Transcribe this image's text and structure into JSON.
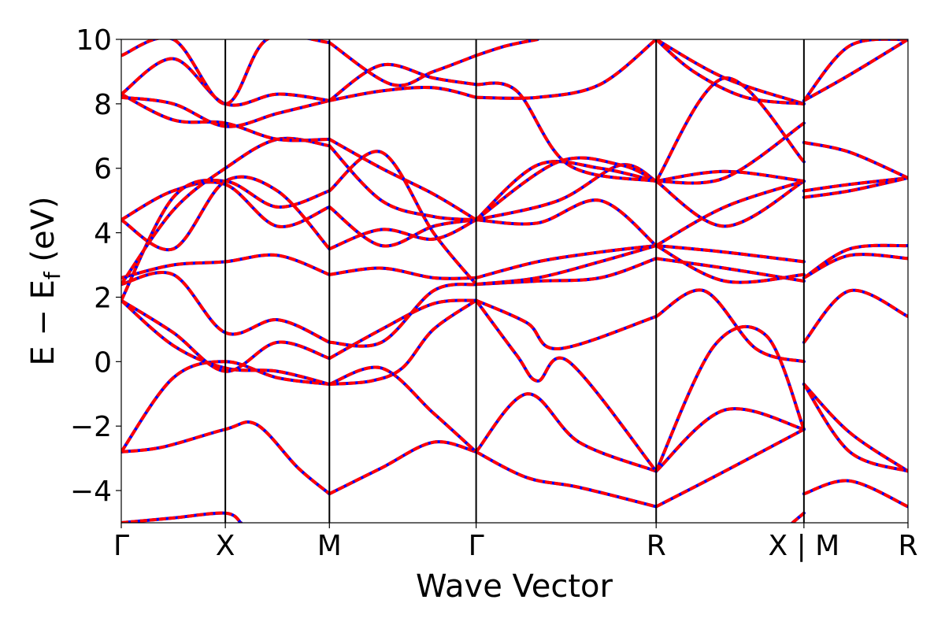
{
  "chart_data": {
    "type": "line",
    "title": "",
    "xlabel": "Wave Vector",
    "ylabel_parts": {
      "main": "E − E",
      "subscript": "f",
      "unit": " (eV)"
    },
    "ylim": [
      -5,
      10
    ],
    "y_ticks": [
      -4,
      -2,
      0,
      2,
      4,
      6,
      8,
      10
    ],
    "y_tick_labels": [
      "−4",
      "−2",
      "0",
      "2",
      "4",
      "6",
      "8",
      "10"
    ],
    "xlim": [
      0,
      7.56
    ],
    "high_symmetry_points": [
      {
        "label": "Γ",
        "x": 0.0
      },
      {
        "label": "X",
        "x": 1.0
      },
      {
        "label": "M",
        "x": 2.0
      },
      {
        "label": "Γ",
        "x": 3.41
      },
      {
        "label": "R",
        "x": 5.14
      },
      {
        "label": "X | M",
        "x": 6.56
      },
      {
        "label": "R",
        "x": 7.56
      }
    ],
    "grid": false,
    "legend": "none",
    "line_colors": {
      "band": "#ff0000",
      "overlay": "#0000ff",
      "vertical": "#000000"
    },
    "series": [
      {
        "x": [
          0,
          0.4,
          1.0,
          1.3,
          1.7,
          2.0
        ],
        "y": [
          -2.8,
          -2.65,
          -2.1,
          -1.95,
          -3.3,
          -4.1
        ]
      },
      {
        "x": [
          2.0,
          2.5,
          3.0,
          3.41
        ],
        "y": [
          -4.1,
          -3.3,
          -2.5,
          -2.8
        ]
      },
      {
        "x": [
          3.41,
          3.9,
          4.4,
          5.14
        ],
        "y": [
          -2.8,
          -3.6,
          -3.9,
          -4.5
        ]
      },
      {
        "x": [
          5.14,
          5.8,
          6.56
        ],
        "y": [
          -4.5,
          -3.4,
          -2.1
        ]
      },
      {
        "x": [
          6.56,
          7.0,
          7.56
        ],
        "y": [
          -4.1,
          -3.7,
          -4.5
        ]
      },
      {
        "x": [
          0,
          0.5,
          1.0,
          1.5,
          2.0
        ],
        "y": [
          -2.8,
          -0.5,
          0.0,
          -0.5,
          -0.7
        ]
      },
      {
        "x": [
          2.0,
          2.5,
          3.0,
          3.41
        ],
        "y": [
          -0.7,
          -0.2,
          -1.6,
          -2.8
        ]
      },
      {
        "x": [
          3.41,
          3.9,
          4.4,
          5.14
        ],
        "y": [
          -2.8,
          -1.0,
          -2.5,
          -3.4
        ]
      },
      {
        "x": [
          5.14,
          5.8,
          6.56
        ],
        "y": [
          -3.4,
          -1.5,
          -2.1
        ]
      },
      {
        "x": [
          6.56,
          7.0,
          7.56
        ],
        "y": [
          -0.7,
          -2.2,
          -3.4
        ]
      },
      {
        "x": [
          0,
          0.5,
          1.0,
          1.5,
          2.0
        ],
        "y": [
          1.9,
          0.5,
          -0.2,
          -0.3,
          -0.7
        ]
      },
      {
        "x": [
          2.0,
          2.4,
          2.7,
          3.0,
          3.41
        ],
        "y": [
          -0.7,
          -0.6,
          -0.2,
          1.0,
          1.9
        ]
      },
      {
        "x": [
          3.41,
          3.8,
          4.0,
          4.3,
          5.14
        ],
        "y": [
          1.9,
          0.2,
          -0.6,
          0.0,
          -3.4
        ]
      },
      {
        "x": [
          5.14,
          5.7,
          6.2,
          6.56
        ],
        "y": [
          -3.4,
          0.5,
          0.8,
          -2.1
        ]
      },
      {
        "x": [
          6.56,
          7.0,
          7.56
        ],
        "y": [
          -0.7,
          -2.8,
          -3.4
        ]
      },
      {
        "x": [
          0,
          0.5,
          1.0,
          1.5,
          2.0
        ],
        "y": [
          1.9,
          0.9,
          -0.3,
          0.6,
          0.1
        ]
      },
      {
        "x": [
          2.0,
          2.5,
          3.0,
          3.41
        ],
        "y": [
          0.1,
          1.0,
          1.8,
          1.9
        ]
      },
      {
        "x": [
          3.41,
          3.9,
          4.2,
          5.14
        ],
        "y": [
          1.9,
          1.2,
          0.4,
          1.4
        ]
      },
      {
        "x": [
          5.14,
          5.6,
          6.1,
          6.56
        ],
        "y": [
          1.4,
          2.2,
          0.4,
          0.0
        ]
      },
      {
        "x": [
          6.56,
          7.0,
          7.56
        ],
        "y": [
          0.6,
          2.2,
          1.4
        ]
      },
      {
        "x": [
          0,
          0.5,
          1.0,
          1.5,
          2.0
        ],
        "y": [
          2.4,
          2.7,
          0.9,
          1.3,
          0.6
        ]
      },
      {
        "x": [
          2.0,
          2.5,
          3.0,
          3.41
        ],
        "y": [
          0.6,
          0.6,
          2.2,
          2.4
        ]
      },
      {
        "x": [
          3.41,
          4.0,
          4.6,
          5.14
        ],
        "y": [
          2.4,
          2.5,
          2.6,
          3.2
        ]
      },
      {
        "x": [
          5.14,
          5.8,
          6.56
        ],
        "y": [
          3.2,
          2.9,
          2.5
        ]
      },
      {
        "x": [
          6.56,
          7.0,
          7.56
        ],
        "y": [
          2.6,
          3.3,
          3.2
        ]
      },
      {
        "x": [
          0,
          0.5,
          1.0,
          1.5,
          2.0
        ],
        "y": [
          2.6,
          3.0,
          3.1,
          3.3,
          2.7
        ]
      },
      {
        "x": [
          2.0,
          2.5,
          3.0,
          3.41
        ],
        "y": [
          2.7,
          2.9,
          2.6,
          2.6
        ]
      },
      {
        "x": [
          3.41,
          4.0,
          4.6,
          5.14
        ],
        "y": [
          2.6,
          3.1,
          3.4,
          3.6
        ]
      },
      {
        "x": [
          5.14,
          5.8,
          6.56
        ],
        "y": [
          3.6,
          3.4,
          3.1
        ]
      },
      {
        "x": [
          6.56,
          7.0,
          7.56
        ],
        "y": [
          2.6,
          3.5,
          3.6
        ]
      },
      {
        "x": [
          0,
          0.5,
          1.0,
          1.5,
          2.0
        ],
        "y": [
          4.4,
          3.5,
          5.6,
          5.3,
          3.5
        ]
      },
      {
        "x": [
          2.0,
          2.5,
          3.0,
          3.41
        ],
        "y": [
          3.5,
          4.1,
          3.8,
          4.4
        ]
      },
      {
        "x": [
          3.41,
          4.0,
          4.6,
          5.14
        ],
        "y": [
          4.4,
          4.3,
          5.0,
          3.6
        ]
      },
      {
        "x": [
          5.14,
          5.8,
          6.56
        ],
        "y": [
          3.6,
          2.5,
          2.7
        ]
      },
      {
        "x": [
          0,
          0.5,
          1.0,
          1.5,
          2.0
        ],
        "y": [
          4.4,
          5.3,
          5.5,
          4.2,
          4.8
        ]
      },
      {
        "x": [
          2.0,
          2.5,
          3.0,
          3.41
        ],
        "y": [
          4.8,
          3.6,
          4.2,
          4.4
        ]
      },
      {
        "x": [
          3.41,
          4.2,
          4.8,
          5.14
        ],
        "y": [
          4.4,
          5.0,
          6.1,
          5.6
        ]
      },
      {
        "x": [
          5.14,
          5.8,
          6.56
        ],
        "y": [
          5.6,
          4.2,
          5.6
        ]
      },
      {
        "x": [
          6.56,
          7.0,
          7.56
        ],
        "y": [
          5.3,
          5.5,
          5.7
        ]
      },
      {
        "x": [
          0,
          0.5,
          1.0,
          1.5,
          2.0
        ],
        "y": [
          1.9,
          5.1,
          5.6,
          4.8,
          5.3
        ]
      },
      {
        "x": [
          2.0,
          2.5,
          3.0,
          3.41
        ],
        "y": [
          5.3,
          6.5,
          4.0,
          2.4
        ]
      },
      {
        "x": [
          3.41,
          4.0,
          4.6,
          5.14
        ],
        "y": [
          2.4,
          2.6,
          3.1,
          3.6
        ]
      },
      {
        "x": [
          5.14,
          5.8,
          6.56
        ],
        "y": [
          3.6,
          4.8,
          5.6
        ]
      },
      {
        "x": [
          6.56,
          7.0,
          7.56
        ],
        "y": [
          5.1,
          5.3,
          5.7
        ]
      },
      {
        "x": [
          0,
          0.5,
          1.0,
          1.5,
          2.0
        ],
        "y": [
          2.4,
          4.7,
          6.0,
          6.9,
          6.7
        ]
      },
      {
        "x": [
          2.0,
          2.5,
          3.0,
          3.41
        ],
        "y": [
          6.7,
          5.0,
          4.5,
          4.4
        ]
      },
      {
        "x": [
          3.41,
          4.0,
          4.6,
          5.14
        ],
        "y": [
          4.4,
          6.1,
          6.0,
          5.6
        ]
      },
      {
        "x": [
          5.14,
          5.8,
          6.56
        ],
        "y": [
          5.6,
          5.9,
          5.6
        ]
      },
      {
        "x": [
          6.56,
          7.0,
          7.56
        ],
        "y": [
          6.8,
          6.5,
          5.7
        ]
      },
      {
        "x": [
          0,
          0.5,
          1.0,
          1.5,
          2.0
        ],
        "y": [
          8.3,
          7.5,
          7.4,
          6.9,
          6.9
        ]
      },
      {
        "x": [
          2.0,
          2.5,
          3.0,
          3.41
        ],
        "y": [
          6.9,
          6.0,
          5.2,
          4.4
        ]
      },
      {
        "x": [
          3.41,
          4.2,
          4.8,
          5.14
        ],
        "y": [
          4.4,
          6.2,
          6.1,
          5.6
        ]
      },
      {
        "x": [
          5.14,
          5.8,
          6.56
        ],
        "y": [
          5.6,
          5.7,
          7.4
        ]
      },
      {
        "x": [
          0,
          0.5,
          1.0,
          1.5,
          2.0
        ],
        "y": [
          8.2,
          8.0,
          7.3,
          7.7,
          8.1
        ]
      },
      {
        "x": [
          2.0,
          2.5,
          3.0,
          3.41
        ],
        "y": [
          8.1,
          8.4,
          8.5,
          8.2
        ]
      },
      {
        "x": [
          3.41,
          4.0,
          4.6,
          5.14
        ],
        "y": [
          8.2,
          8.2,
          8.6,
          10.0
        ]
      },
      {
        "x": [
          5.14,
          5.8,
          6.56
        ],
        "y": [
          10.0,
          8.8,
          8.0
        ]
      },
      {
        "x": [
          6.56,
          7.0,
          7.56
        ],
        "y": [
          8.1,
          8.9,
          10.0
        ]
      },
      {
        "x": [
          0,
          0.5,
          1.0,
          1.5,
          2.0
        ],
        "y": [
          8.3,
          9.4,
          8.0,
          8.3,
          8.1
        ]
      },
      {
        "x": [
          2.0,
          2.5,
          3.0,
          3.41
        ],
        "y": [
          8.1,
          9.2,
          8.8,
          8.6
        ]
      },
      {
        "x": [
          3.41,
          3.8,
          4.3,
          5.14
        ],
        "y": [
          8.6,
          8.4,
          6.1,
          5.6
        ]
      },
      {
        "x": [
          5.14,
          5.8,
          6.56
        ],
        "y": [
          5.6,
          8.8,
          6.2
        ]
      },
      {
        "x": [
          6.56,
          7.0,
          7.56
        ],
        "y": [
          8.1,
          9.8,
          10.0
        ]
      },
      {
        "x": [
          0,
          0.5,
          1.0,
          1.4,
          2.0
        ],
        "y": [
          9.5,
          10.0,
          8.0,
          10.0,
          9.9
        ]
      },
      {
        "x": [
          2.0,
          2.6,
          3.0,
          3.41
        ],
        "y": [
          9.9,
          8.6,
          9.0,
          9.5
        ]
      },
      {
        "x": [
          3.41,
          3.7,
          4.0
        ],
        "y": [
          9.5,
          9.8,
          10.0
        ]
      },
      {
        "x": [
          5.14,
          5.5,
          6.0,
          6.56
        ],
        "y": [
          10.0,
          9.0,
          8.2,
          8.0
        ]
      },
      {
        "x": [
          0,
          0.5,
          1.0,
          1.15
        ],
        "y": [
          -5.0,
          -4.85,
          -4.7,
          -5.0
        ]
      },
      {
        "x": [
          6.45,
          6.56
        ],
        "y": [
          -5.0,
          -4.7
        ]
      }
    ]
  }
}
